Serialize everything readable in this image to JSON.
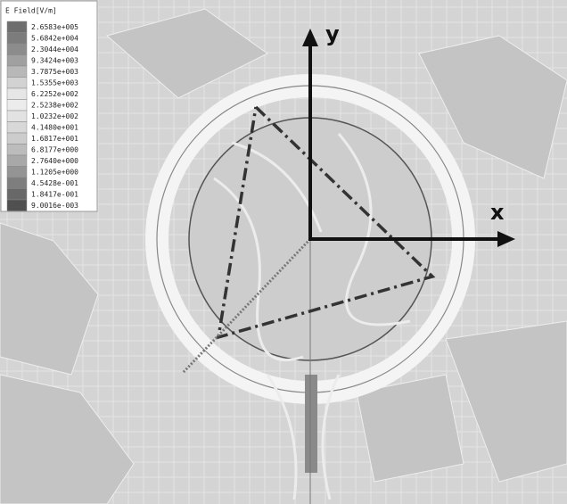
{
  "legend": {
    "title": "E Field[V/m]",
    "entries": [
      {
        "label": "2.6583e+005",
        "color": "#6e6e6e"
      },
      {
        "label": "5.6842e+004",
        "color": "#7c7c7c"
      },
      {
        "label": "2.3044e+004",
        "color": "#8c8c8c"
      },
      {
        "label": "9.3424e+003",
        "color": "#a0a0a0"
      },
      {
        "label": "3.7875e+003",
        "color": "#b8b8b8"
      },
      {
        "label": "1.5355e+003",
        "color": "#d2d2d2"
      },
      {
        "label": "6.2252e+002",
        "color": "#e6e6e6"
      },
      {
        "label": "2.5238e+002",
        "color": "#ececec"
      },
      {
        "label": "1.0232e+002",
        "color": "#e2e2e2"
      },
      {
        "label": "4.1480e+001",
        "color": "#d8d8d8"
      },
      {
        "label": "1.6817e+001",
        "color": "#cccccc"
      },
      {
        "label": "6.8177e+000",
        "color": "#bcbcbc"
      },
      {
        "label": "2.7640e+000",
        "color": "#a8a8a8"
      },
      {
        "label": "1.1205e+000",
        "color": "#949494"
      },
      {
        "label": "4.5428e-001",
        "color": "#7e7e7e"
      },
      {
        "label": "1.8417e-001",
        "color": "#686868"
      },
      {
        "label": "9.0016e-003",
        "color": "#505050"
      }
    ]
  },
  "axes": {
    "y": "y",
    "x": "x"
  }
}
